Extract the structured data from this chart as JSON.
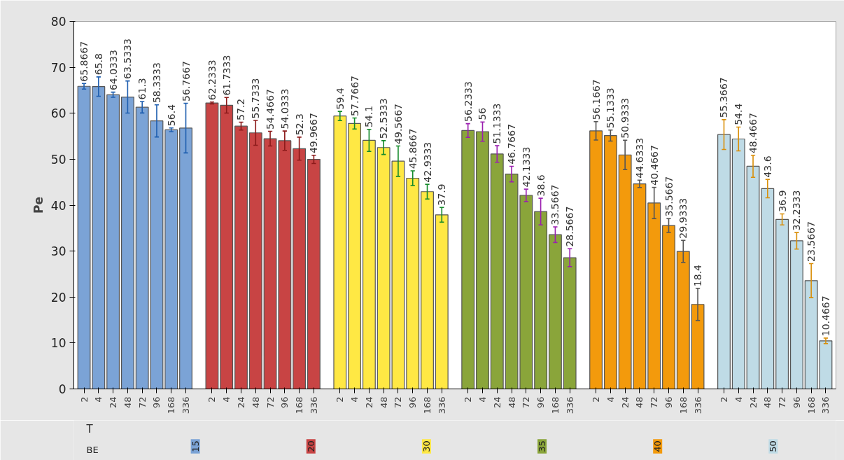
{
  "chart_data": {
    "type": "bar",
    "ylabel": "Pe",
    "xlabel": "T",
    "annotations": [
      "BE"
    ],
    "categories": [
      "2",
      "4",
      "24",
      "48",
      "72",
      "96",
      "168",
      "336",
      "2",
      "4",
      "24",
      "48",
      "72",
      "96",
      "168",
      "336",
      "2",
      "4",
      "24",
      "48",
      "72",
      "96",
      "168",
      "336",
      "2",
      "4",
      "24",
      "48",
      "72",
      "96",
      "168",
      "336",
      "2",
      "4",
      "24",
      "48",
      "72",
      "96",
      "168",
      "336",
      "2",
      "4",
      "24",
      "48",
      "72",
      "96",
      "168",
      "336"
    ],
    "ylim": [
      0,
      80
    ],
    "yticks": [
      0,
      10,
      20,
      30,
      40,
      50,
      60,
      70,
      80
    ],
    "grid": false,
    "legend": false,
    "data_labels": true,
    "series": [
      {
        "name": "15",
        "color": "#7ba3d6",
        "values": [
          65.8667,
          65.8,
          64.0333,
          63.5333,
          61.3,
          58.3333,
          56.4,
          56.7667,
          null,
          null,
          null,
          null,
          null,
          null,
          null,
          null,
          null,
          null,
          null,
          null,
          null,
          null,
          null,
          null,
          null,
          null,
          null,
          null,
          null,
          null,
          null,
          null,
          null,
          null,
          null,
          null,
          null,
          null,
          null,
          null,
          null,
          null,
          null,
          null,
          null,
          null,
          null,
          null
        ],
        "errors": [
          0.6,
          2.1,
          0.55,
          3.5,
          1.25,
          3.5,
          0.4,
          5.4,
          null,
          null,
          null,
          null,
          null,
          null,
          null,
          null,
          null,
          null,
          null,
          null,
          null,
          null,
          null,
          null,
          null,
          null,
          null,
          null,
          null,
          null,
          null,
          null,
          null,
          null,
          null,
          null,
          null,
          null,
          null,
          null,
          null,
          null,
          null,
          null,
          null,
          null,
          null,
          null
        ]
      },
      {
        "name": "20",
        "color": "#c84444",
        "values": [
          null,
          null,
          null,
          null,
          null,
          null,
          null,
          null,
          62.2333,
          61.7333,
          57.2,
          55.7333,
          54.4667,
          54.0333,
          52.3,
          49.9667,
          null,
          null,
          null,
          null,
          null,
          null,
          null,
          null,
          null,
          null,
          null,
          null,
          null,
          null,
          null,
          null,
          null,
          null,
          null,
          null,
          null,
          null,
          null,
          null,
          null,
          null,
          null,
          null,
          null,
          null,
          null,
          null
        ],
        "errors": [
          null,
          null,
          null,
          null,
          null,
          null,
          null,
          null,
          0.2,
          1.7,
          0.85,
          2.7,
          1.6,
          2.1,
          2.5,
          0.9,
          null,
          null,
          null,
          null,
          null,
          null,
          null,
          null,
          null,
          null,
          null,
          null,
          null,
          null,
          null,
          null,
          null,
          null,
          null,
          null,
          null,
          null,
          null,
          null,
          null,
          null,
          null,
          null,
          null,
          null,
          null,
          null
        ]
      },
      {
        "name": "30",
        "color": "#ffe844",
        "values": [
          null,
          null,
          null,
          null,
          null,
          null,
          null,
          null,
          null,
          null,
          null,
          null,
          null,
          null,
          null,
          null,
          59.4,
          57.7667,
          54.1,
          52.5333,
          49.5667,
          45.8667,
          42.9333,
          37.9,
          null,
          null,
          null,
          null,
          null,
          null,
          null,
          null,
          null,
          null,
          null,
          null,
          null,
          null,
          null,
          null,
          null,
          null,
          null,
          null,
          null,
          null,
          null,
          null
        ],
        "errors": [
          null,
          null,
          null,
          null,
          null,
          null,
          null,
          null,
          null,
          null,
          null,
          null,
          null,
          null,
          null,
          null,
          1.0,
          1.2,
          2.4,
          1.5,
          3.3,
          1.6,
          1.6,
          1.6,
          null,
          null,
          null,
          null,
          null,
          null,
          null,
          null,
          null,
          null,
          null,
          null,
          null,
          null,
          null,
          null,
          null,
          null,
          null,
          null,
          null,
          null,
          null,
          null
        ]
      },
      {
        "name": "35",
        "color": "#8aa53a",
        "values": [
          null,
          null,
          null,
          null,
          null,
          null,
          null,
          null,
          null,
          null,
          null,
          null,
          null,
          null,
          null,
          null,
          null,
          null,
          null,
          null,
          null,
          null,
          null,
          null,
          56.2333,
          56,
          51.1333,
          46.7667,
          42.1333,
          38.6,
          33.5667,
          28.5667,
          null,
          null,
          null,
          null,
          null,
          null,
          null,
          null,
          null,
          null,
          null,
          null,
          null,
          null,
          null,
          null
        ],
        "errors": [
          null,
          null,
          null,
          null,
          null,
          null,
          null,
          null,
          null,
          null,
          null,
          null,
          null,
          null,
          null,
          null,
          null,
          null,
          null,
          null,
          null,
          null,
          null,
          null,
          1.5,
          2.1,
          1.8,
          1.7,
          1.35,
          2.9,
          1.7,
          1.95,
          null,
          null,
          null,
          null,
          null,
          null,
          null,
          null,
          null,
          null,
          null,
          null,
          null,
          null,
          null,
          null
        ]
      },
      {
        "name": "40",
        "color": "#f39a0c",
        "values": [
          null,
          null,
          null,
          null,
          null,
          null,
          null,
          null,
          null,
          null,
          null,
          null,
          null,
          null,
          null,
          null,
          null,
          null,
          null,
          null,
          null,
          null,
          null,
          null,
          null,
          null,
          null,
          null,
          null,
          null,
          null,
          null,
          56.1667,
          55.1333,
          50.9333,
          44.6333,
          40.4667,
          35.5667,
          29.9333,
          18.4,
          null,
          null,
          null,
          null,
          null,
          null,
          null,
          null
        ],
        "errors": [
          null,
          null,
          null,
          null,
          null,
          null,
          null,
          null,
          null,
          null,
          null,
          null,
          null,
          null,
          null,
          null,
          null,
          null,
          null,
          null,
          null,
          null,
          null,
          null,
          null,
          null,
          null,
          null,
          null,
          null,
          null,
          null,
          2.0,
          1.2,
          3.2,
          0.8,
          3.4,
          1.5,
          2.4,
          3.5,
          null,
          null,
          null,
          null,
          null,
          null,
          null,
          null
        ]
      },
      {
        "name": "50",
        "color": "#bfdbe6",
        "values": [
          null,
          null,
          null,
          null,
          null,
          null,
          null,
          null,
          null,
          null,
          null,
          null,
          null,
          null,
          null,
          null,
          null,
          null,
          null,
          null,
          null,
          null,
          null,
          null,
          null,
          null,
          null,
          null,
          null,
          null,
          null,
          null,
          null,
          null,
          null,
          null,
          null,
          null,
          null,
          null,
          55.3667,
          54.4,
          48.4667,
          43.6,
          36.9,
          32.2333,
          23.5667,
          10.4667
        ],
        "errors": [
          null,
          null,
          null,
          null,
          null,
          null,
          null,
          null,
          null,
          null,
          null,
          null,
          null,
          null,
          null,
          null,
          null,
          null,
          null,
          null,
          null,
          null,
          null,
          null,
          null,
          null,
          null,
          null,
          null,
          null,
          null,
          null,
          null,
          null,
          null,
          null,
          null,
          null,
          null,
          null,
          3.25,
          2.6,
          2.4,
          2.0,
          1.2,
          1.8,
          3.7,
          0.6
        ]
      }
    ]
  }
}
